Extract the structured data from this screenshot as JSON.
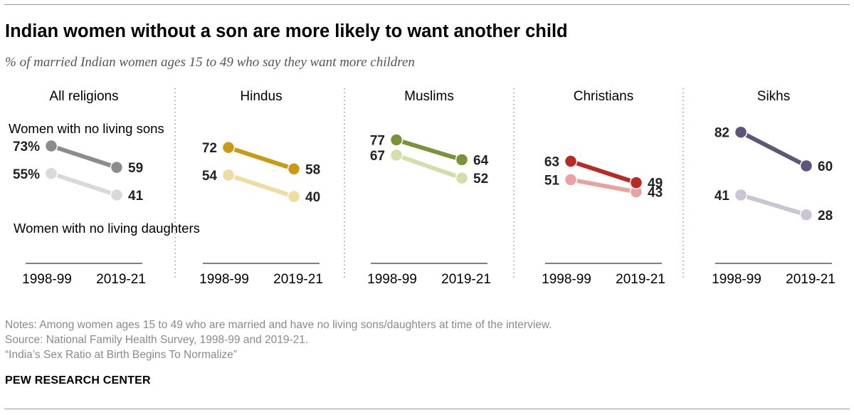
{
  "title": "Indian women without a son are more likely to want another child",
  "subtitle": "% of married Indian women ages 15 to 49 who say they want more children",
  "notes": {
    "line1": "Notes: Among women ages 15 to 49 who are married and have no living sons/daughters at time of the interview.",
    "line2": "Source: National Family Health Survey, 1998-99 and 2019-21.",
    "line3": "“India’s Sex Ratio at Birth Begins To Normalize”"
  },
  "brand": "PEW RESEARCH CENTER",
  "chart_data": {
    "type": "line",
    "x": [
      "1998-99",
      "2019-21"
    ],
    "ylim": [
      0,
      100
    ],
    "grid": false,
    "annotations": {
      "no_sons": "Women with no living sons",
      "no_daughters": "Women with no living daughters"
    },
    "panels": [
      {
        "name": "All religions",
        "no_sons": [
          73,
          59
        ],
        "no_daughters": [
          55,
          41
        ],
        "no_sons_labels": [
          "73%",
          "59"
        ],
        "no_daughters_labels": [
          "55%",
          "41"
        ],
        "colors": {
          "no_sons": "#8c8c8c",
          "no_daughters": "#d9d9d9"
        }
      },
      {
        "name": "Hindus",
        "no_sons": [
          72,
          58
        ],
        "no_daughters": [
          54,
          40
        ],
        "no_sons_labels": [
          "72",
          "58"
        ],
        "no_daughters_labels": [
          "54",
          "40"
        ],
        "colors": {
          "no_sons": "#c99a14",
          "no_daughters": "#eedca0"
        }
      },
      {
        "name": "Muslims",
        "no_sons": [
          77,
          64
        ],
        "no_daughters": [
          67,
          52
        ],
        "no_sons_labels": [
          "77",
          "64"
        ],
        "no_daughters_labels": [
          "67",
          "52"
        ],
        "colors": {
          "no_sons": "#799339",
          "no_daughters": "#d3dfaa"
        }
      },
      {
        "name": "Christians",
        "no_sons": [
          63,
          49
        ],
        "no_daughters": [
          51,
          43
        ],
        "no_sons_labels": [
          "63",
          "49"
        ],
        "no_daughters_labels": [
          "51",
          "43"
        ],
        "colors": {
          "no_sons": "#b82a24",
          "no_daughters": "#e8a29f"
        }
      },
      {
        "name": "Sikhs",
        "no_sons": [
          82,
          60
        ],
        "no_daughters": [
          41,
          28
        ],
        "no_sons_labels": [
          "82",
          "60"
        ],
        "no_daughters_labels": [
          "41",
          "28"
        ],
        "colors": {
          "no_sons": "#5e5578",
          "no_daughters": "#cbc4d4"
        }
      }
    ]
  }
}
